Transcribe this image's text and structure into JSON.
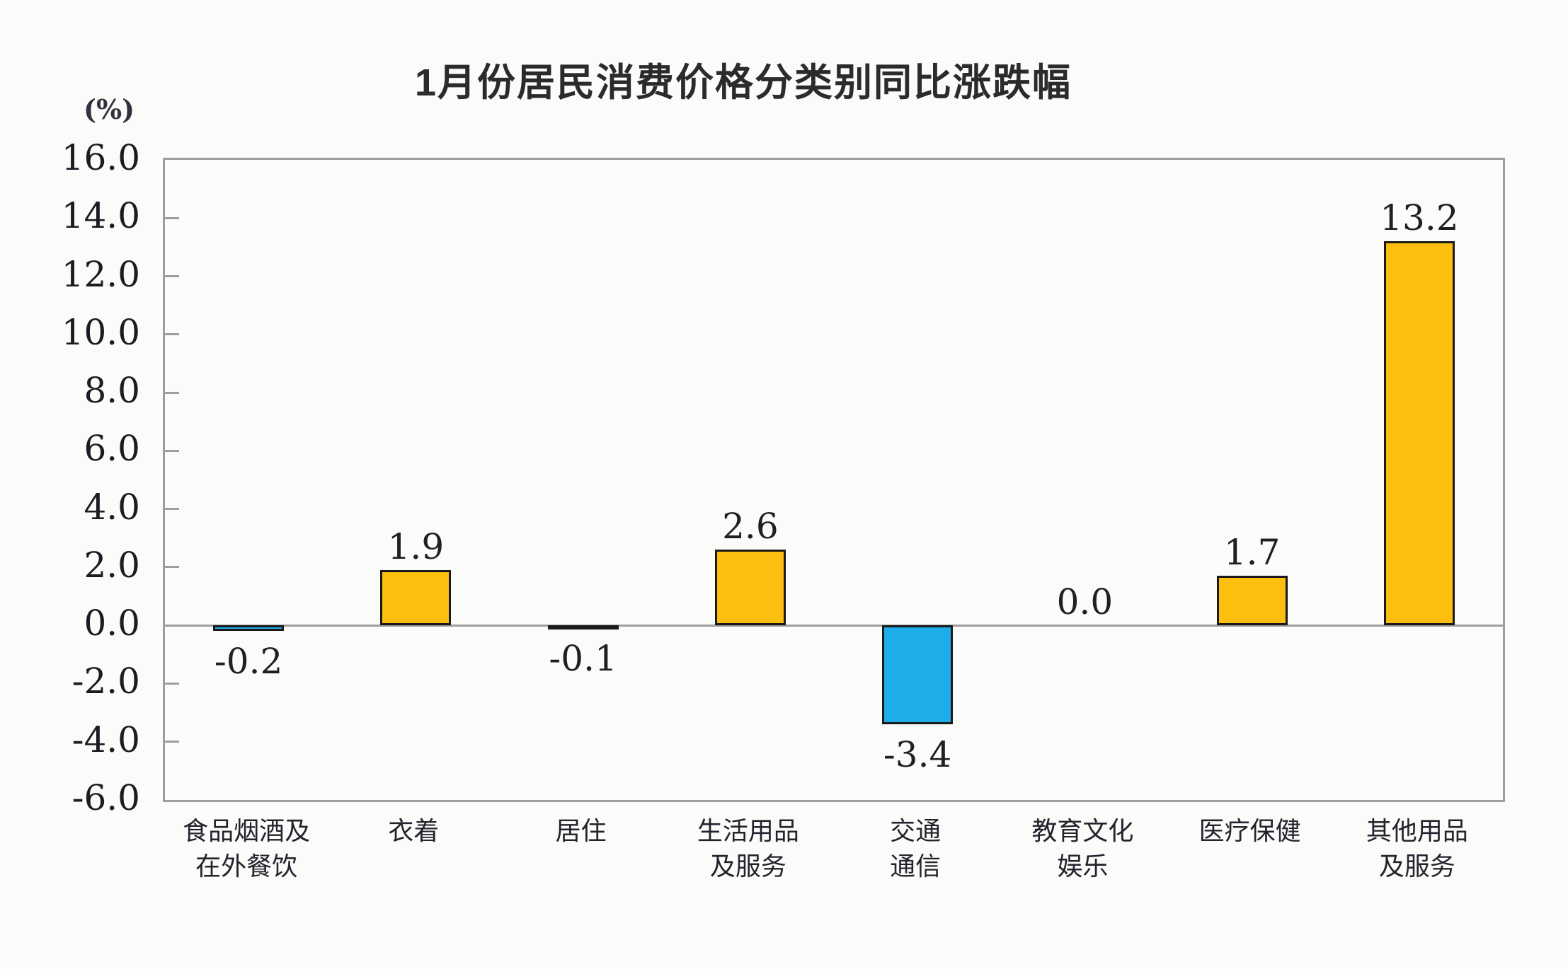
{
  "chart": {
    "title": "1月份居民消费价格分类别同比涨跌幅",
    "unit_label": "(%)"
  },
  "chart_data": {
    "type": "bar",
    "title": "1月份居民消费价格分类别同比涨跌幅",
    "unit": "%",
    "categories": [
      "食品烟酒及\n在外餐饮",
      "衣着",
      "居住",
      "生活用品\n及服务",
      "交通\n通信",
      "教育文化\n娱乐",
      "医疗保健",
      "其他用品\n及服务"
    ],
    "values": [
      -0.2,
      1.9,
      -0.1,
      2.6,
      -3.4,
      0.0,
      1.7,
      13.2
    ],
    "value_labels": [
      "-0.2",
      "1.9",
      "-0.1",
      "2.6",
      "-3.4",
      "0.0",
      "1.7",
      "13.2"
    ],
    "y_ticks": [
      16,
      14,
      12,
      10,
      8,
      6,
      4,
      2,
      0,
      -2,
      -4,
      -6
    ],
    "y_tick_labels": [
      "16.0",
      "14.0",
      "12.0",
      "10.0",
      "8.0",
      "6.0",
      "4.0",
      "2.0",
      "0.0",
      "-2.0",
      "-4.0",
      "-6.0"
    ],
    "ylim": [
      -6,
      16
    ],
    "grid": false,
    "legend": false,
    "xlabel": "",
    "ylabel": "(%)",
    "colors": {
      "bar_positive": "#FDBF0F",
      "bar_negative": "#1FADEA",
      "bar_border": "#1A1A1A",
      "axis": "#9E9E9E",
      "text": "#1F1F24",
      "background": "#FBFBF9"
    }
  }
}
